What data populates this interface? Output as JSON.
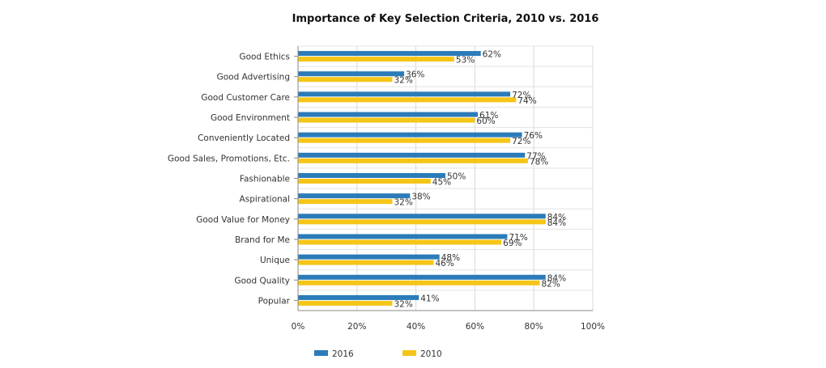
{
  "chart_data": {
    "type": "bar",
    "orientation": "horizontal",
    "title": "Importance of Key Selection Criteria, 2010 vs. 2016",
    "xlabel": "",
    "ylabel": "",
    "xlim": [
      0,
      100
    ],
    "x_ticks": [
      "0%",
      "20%",
      "40%",
      "60%",
      "80%",
      "100%"
    ],
    "grid": true,
    "legend_position": "bottom",
    "categories": [
      "Good Ethics",
      "Good Advertising",
      "Good Customer Care",
      "Good Environment",
      "Conveniently Located",
      "Good Sales, Promotions, Etc.",
      "Fashionable",
      "Aspirational",
      "Good Value for Money",
      "Brand for Me",
      "Unique",
      "Good Quality",
      "Popular"
    ],
    "series": [
      {
        "name": "2016",
        "color": "#2b7bb9",
        "values": [
          62,
          36,
          72,
          61,
          76,
          77,
          50,
          38,
          84,
          71,
          48,
          84,
          41
        ]
      },
      {
        "name": "2010",
        "color": "#f5c518",
        "values": [
          53,
          32,
          74,
          60,
          72,
          78,
          45,
          32,
          84,
          69,
          46,
          82,
          32
        ]
      }
    ]
  }
}
